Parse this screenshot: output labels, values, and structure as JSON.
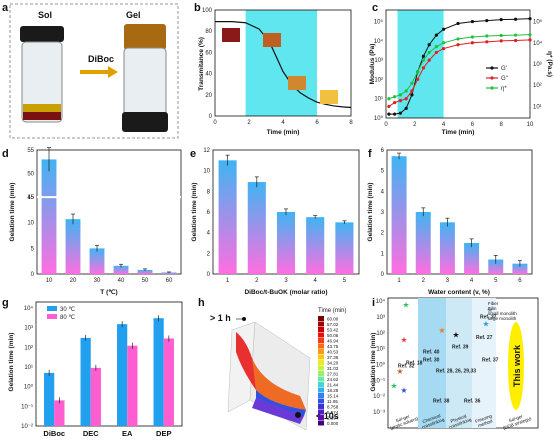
{
  "figure": {
    "panel_labels": [
      "a",
      "b",
      "c",
      "d",
      "e",
      "f",
      "g",
      "h",
      "i"
    ]
  },
  "panel_a": {
    "sol_label": "Sol",
    "gel_label": "Gel",
    "arrow_label": "DiBoc"
  },
  "chart_data": [
    {
      "id": "b",
      "type": "line",
      "xlabel": "Time (min)",
      "ylabel": "Transmitance (%)",
      "xlim": [
        0,
        8
      ],
      "ylim": [
        0,
        100
      ],
      "xticks": [
        "0",
        "2",
        "4",
        "6",
        "8"
      ],
      "yticks": [
        "0",
        "20",
        "40",
        "60",
        "80",
        "100"
      ],
      "x": [
        0,
        1,
        1.8,
        2.6,
        3.2,
        3.6,
        4.0,
        4.5,
        5.0,
        5.5,
        6.0,
        6.5,
        7.0,
        7.5,
        8.0
      ],
      "y": [
        89,
        89,
        88,
        82,
        70,
        56,
        42,
        30,
        22,
        17,
        13,
        11,
        9.5,
        8.6,
        8
      ],
      "highlight": [
        1.8,
        6.0
      ],
      "highlight_color": "#5fe6ee"
    },
    {
      "id": "c",
      "type": "line",
      "xlabel": "Time (min)",
      "ylabel": "Modulus (Pa)",
      "ylabel_right": "η* (Pa.s)",
      "xlim": [
        0,
        10
      ],
      "xticks": [
        "0",
        "2",
        "4",
        "6",
        "8",
        "10"
      ],
      "yticks_log": [
        "10⁰",
        "10¹",
        "10²",
        "10³",
        "10⁴",
        "10⁵"
      ],
      "yticks_right": [
        "10¹",
        "10²",
        "10³",
        "10⁴",
        "10⁵"
      ],
      "highlight": [
        0.8,
        4.0
      ],
      "highlight_color": "#5fe6ee",
      "series": [
        {
          "name": "G'",
          "color": "#111111",
          "x": [
            0.2,
            0.6,
            1.0,
            1.4,
            1.8,
            2.2,
            2.6,
            3.0,
            3.5,
            4.0,
            5,
            6,
            7,
            8,
            9,
            10
          ],
          "y": [
            0.2,
            0.2,
            0.25,
            0.5,
            1.2,
            2.4,
            3.2,
            3.8,
            4.3,
            4.6,
            4.9,
            5.0,
            5.05,
            5.1,
            5.12,
            5.15
          ]
        },
        {
          "name": "G''",
          "color": "#e02020",
          "x": [
            0.2,
            0.6,
            1.0,
            1.4,
            1.8,
            2.2,
            2.6,
            3.0,
            3.5,
            4.0,
            5,
            6,
            7,
            8,
            9,
            10
          ],
          "y": [
            0.6,
            0.8,
            0.9,
            1.0,
            1.4,
            2.0,
            2.6,
            3.0,
            3.4,
            3.6,
            3.8,
            3.9,
            3.95,
            4.0,
            4.02,
            4.05
          ]
        },
        {
          "name": "η*",
          "color": "#20c040",
          "x": [
            0.2,
            0.6,
            1.0,
            1.4,
            1.8,
            2.2,
            2.6,
            3.0,
            3.5,
            4.0,
            5,
            6,
            7,
            8,
            9,
            10
          ],
          "y": [
            1.0,
            1.1,
            1.2,
            1.4,
            1.8,
            2.4,
            3.0,
            3.4,
            3.7,
            3.9,
            4.1,
            4.2,
            4.25,
            4.28,
            4.3,
            4.32
          ]
        }
      ]
    },
    {
      "id": "d",
      "type": "bar",
      "xlabel": "T (℃)",
      "ylabel": "Gelation time (min)",
      "categories": [
        "10",
        "20",
        "30",
        "40",
        "50",
        "60"
      ],
      "values": [
        53,
        10.7,
        5.0,
        1.6,
        0.8,
        0.3
      ],
      "errors": [
        2.5,
        1.0,
        0.6,
        0.3,
        0.2,
        0.1
      ],
      "axis_break": [
        15,
        45
      ],
      "yticks": [
        "0",
        "5",
        "10",
        "15",
        "45",
        "50",
        "55"
      ]
    },
    {
      "id": "e",
      "type": "bar",
      "xlabel": "DiBoc/t-BuOK (molar ratio)",
      "ylabel": "Gelation time (min)",
      "categories": [
        "1",
        "2",
        "3",
        "4",
        "5"
      ],
      "values": [
        11.0,
        8.9,
        6.0,
        5.5,
        5.0
      ],
      "errors": [
        0.5,
        0.5,
        0.3,
        0.15,
        0.15
      ],
      "ylim": [
        0,
        12
      ],
      "yticks": [
        "0",
        "2",
        "4",
        "6",
        "8",
        "10",
        "12"
      ]
    },
    {
      "id": "f",
      "type": "bar",
      "xlabel": "Water content (v, %)",
      "ylabel": "Gelation time (min)",
      "categories": [
        "1",
        "2",
        "3",
        "4",
        "5",
        "6"
      ],
      "values": [
        5.7,
        3.0,
        2.5,
        1.5,
        0.7,
        0.5
      ],
      "errors": [
        0.15,
        0.2,
        0.2,
        0.2,
        0.2,
        0.15
      ],
      "ylim": [
        0,
        6
      ],
      "yticks": [
        "0",
        "1",
        "2",
        "3",
        "4",
        "5",
        "6"
      ]
    },
    {
      "id": "g",
      "type": "bar",
      "ylabel": "Gelation time (min)",
      "categories": [
        "DiBoc",
        "DEC",
        "EA",
        "DEP"
      ],
      "yticks_log": [
        "10⁻²",
        "10⁻¹",
        "10⁰",
        "10¹",
        "10²",
        "10³",
        "10⁴"
      ],
      "series": [
        {
          "name": "30 ℃",
          "values": [
            5,
            300,
            1500,
            3000
          ]
        },
        {
          "name": "80 ℃",
          "values": [
            0.2,
            9,
            120,
            280
          ]
        }
      ]
    },
    {
      "id": "h",
      "type": "heatmap",
      "annotations": [
        "> 1 h",
        "< 10s"
      ],
      "legend_title": "Time (min)",
      "legend_values": [
        "60.00",
        "57.02",
        "53.42",
        "50.06",
        "46.94",
        "43.75",
        "40.53",
        "37.36",
        "34.20",
        "31.03",
        "27.81",
        "24.62",
        "21.44",
        "18.28",
        "15.14",
        "11.95",
        "8.758",
        "5.574",
        "2.394",
        "0.000"
      ]
    },
    {
      "id": "i",
      "type": "scatter",
      "ylabel": "Gelation time (min)",
      "yticks_log": [
        "10⁻³",
        "10⁻²",
        "10⁻¹",
        "10⁰",
        "10¹",
        "10²",
        "10³",
        "10⁴"
      ],
      "categories": [
        "Sol-gel\n(protic solvent)",
        "Chemical\ncrosslinking",
        "Physical\ncrosslinking",
        "Freezing\nmethod",
        "Sol-gel\n(DDB strategy)"
      ],
      "legend": [
        "Fiber",
        "Film",
        "small monolith",
        "large monolith"
      ],
      "refs": [
        "Ref. 18",
        "Ref. 32",
        "Ref. 40",
        "Ref. 30",
        "Ref. 28, 26, 29,33",
        "Ref. 38",
        "Ref. 39",
        "Ref. 27",
        "Ref. 37",
        "Ref. 37",
        "Ref. 36"
      ],
      "this_work_label": "This work"
    }
  ]
}
